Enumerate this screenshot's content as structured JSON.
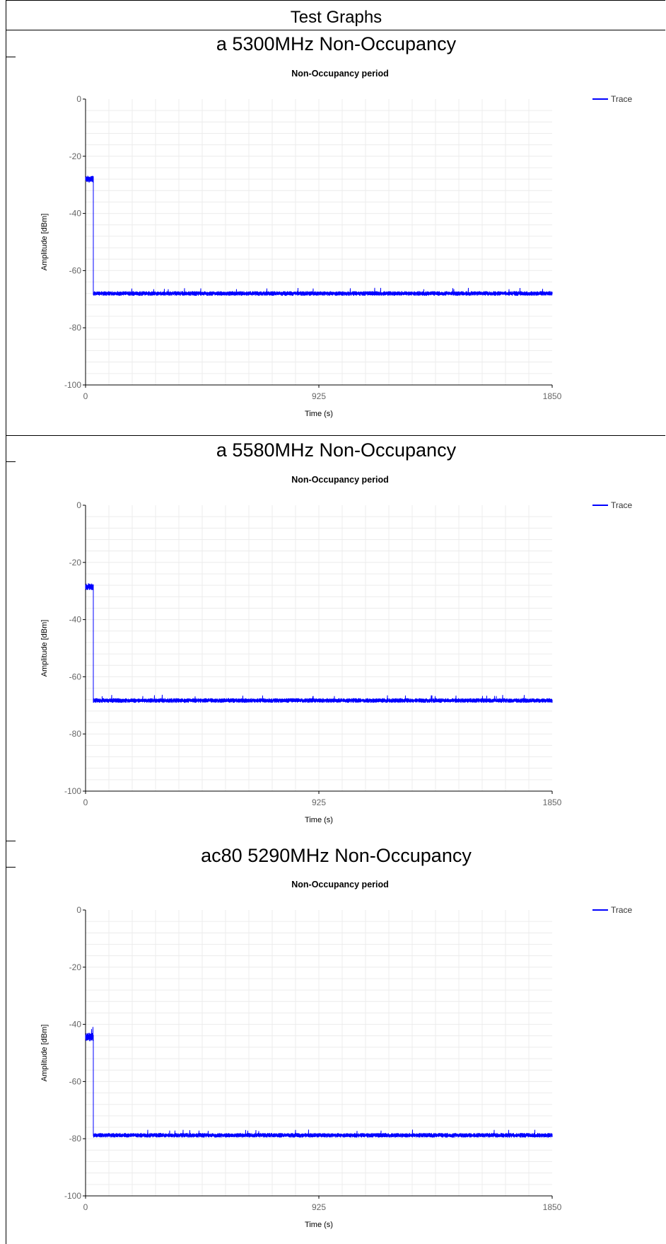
{
  "header": {
    "title": "Test Graphs"
  },
  "colors": {
    "trace": "#0000ff",
    "grid": "#ececec",
    "axis": "#000000",
    "tick_text": "#666666"
  },
  "chart_data": [
    {
      "section_title": "a 5300MHz Non-Occupancy",
      "type": "line",
      "title": "Non-Occupancy period",
      "xlabel": "Time (s)",
      "ylabel": "Amplitude [dBm]",
      "xlim": [
        0,
        1850
      ],
      "ylim": [
        -100,
        0
      ],
      "xticks": [
        0,
        925,
        1850
      ],
      "yticks": [
        0,
        -20,
        -40,
        -60,
        -80,
        -100
      ],
      "grid": true,
      "legend": {
        "position": "top-right",
        "entries": [
          "Trace"
        ]
      },
      "series": [
        {
          "name": "Trace",
          "segments": [
            {
              "x_start": 0,
              "x_end": 32,
              "level": -28,
              "noise": 1.2
            },
            {
              "x_start": 32,
              "x_end": 1850,
              "level": -68,
              "noise": 0.8
            }
          ]
        }
      ]
    },
    {
      "section_title": "a 5580MHz Non-Occupancy",
      "type": "line",
      "title": "Non-Occupancy period",
      "xlabel": "Time (s)",
      "ylabel": "Amplitude [dBm]",
      "xlim": [
        0,
        1850
      ],
      "ylim": [
        -100,
        0
      ],
      "xticks": [
        0,
        925,
        1850
      ],
      "yticks": [
        0,
        -20,
        -40,
        -60,
        -80,
        -100
      ],
      "grid": true,
      "legend": {
        "position": "top-right",
        "entries": [
          "Trace"
        ]
      },
      "series": [
        {
          "name": "Trace",
          "segments": [
            {
              "x_start": 0,
              "x_end": 32,
              "level": -28.5,
              "noise": 1.2
            },
            {
              "x_start": 32,
              "x_end": 1850,
              "level": -68.3,
              "noise": 0.8
            }
          ]
        }
      ]
    },
    {
      "section_title": "ac80 5290MHz Non-Occupancy",
      "type": "line",
      "title": "Non-Occupancy period",
      "xlabel": "Time (s)",
      "ylabel": "Amplitude [dBm]",
      "xlim": [
        0,
        1850
      ],
      "ylim": [
        -100,
        0
      ],
      "xticks": [
        0,
        925,
        1850
      ],
      "yticks": [
        0,
        -20,
        -40,
        -60,
        -80,
        -100
      ],
      "grid": true,
      "legend": {
        "position": "top-right",
        "entries": [
          "Trace"
        ]
      },
      "series": [
        {
          "name": "Trace",
          "segments": [
            {
              "x_start": 0,
              "x_end": 32,
              "level": -44.5,
              "noise": 1.5
            },
            {
              "x_start": 32,
              "x_end": 1850,
              "level": -78.8,
              "noise": 0.8
            }
          ]
        }
      ]
    }
  ]
}
